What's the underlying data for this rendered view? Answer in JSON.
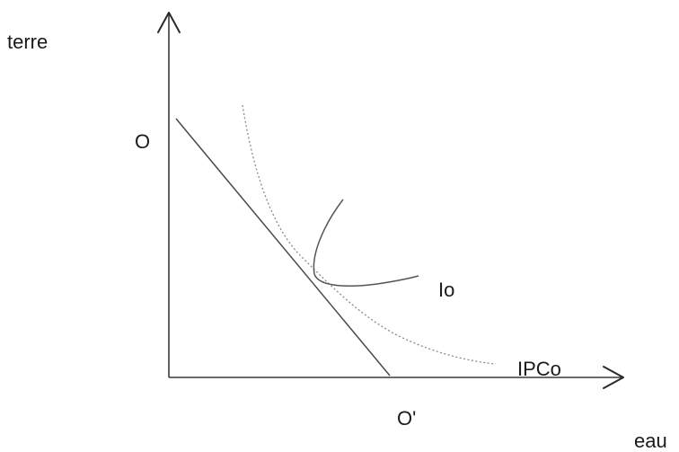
{
  "labels": {
    "y_axis": "terre",
    "x_axis": "eau",
    "origin_point": "O",
    "intercept_point": "O'",
    "curve_io": "Io",
    "curve_ipco": "IPCo"
  }
}
